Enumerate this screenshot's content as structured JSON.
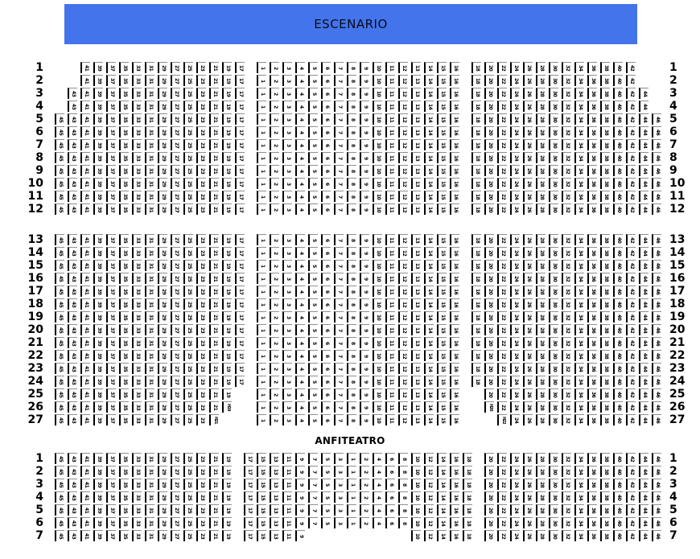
{
  "stage": {
    "label": "ESCENARIO",
    "bg_color": "#4374EB",
    "text_color": "#0a0a14"
  },
  "anfiteatro": {
    "label": "ANFITEATRO"
  },
  "seat_style": {
    "border_color": "#000000",
    "top_border_color": "#8f8f8f",
    "background": "#ffffff"
  },
  "main_block_1": {
    "rows": [
      {
        "n": "1",
        "left": "- - 41 39 37 35 33 31 29 27 25 23 21 19 17",
        "center": "1 2 3 4 5 6 7 8 9 10 11 12 13 14 15 16",
        "right": "18 20 22 24 26 28 30 32 34 36 38 40 42 - -"
      },
      {
        "n": "2",
        "left": "- - 41 39 37 35 33 31 29 27 25 23 21 19 17",
        "center": "1 2 3 4 5 6 7 8 9 10 11 12 13 14 15 16",
        "right": "18 20 22 24 26 28 30 32 34 36 38 40 42 - -"
      },
      {
        "n": "3",
        "left": "- 43 41 39 37 35 33 31 29 27 25 23 21 19 17",
        "center": "1 2 3 4 5 6 7 8 9 10 11 12 13 14 15 16",
        "right": "18 20 22 24 26 28 30 32 34 36 38 40 42 44 -"
      },
      {
        "n": "4",
        "left": "- 43 41 39 37 35 33 31 29 27 25 23 21 19 17",
        "center": "1 2 3 4 5 6 7 8 9 10 11 12 13 14 15 16",
        "right": "18 20 22 24 26 28 30 32 34 36 38 40 42 44 -"
      },
      {
        "n": "5",
        "left": "45 43 41 39 37 35 33 31 29 27 25 23 21 19 17",
        "center": "1 2 3 4 5 6 7 8 9 10 11 12 13 14 15 16",
        "right": "18 20 22 24 26 28 30 32 34 36 38 40 42 44 46"
      },
      {
        "n": "6",
        "left": "45 43 41 39 37 35 33 31 29 27 25 23 21 19 17",
        "center": "1 2 3 4 5 6 7 8 9 10 11 12 13 14 15 16",
        "right": "18 20 22 24 26 28 30 32 34 36 38 40 42 44 46"
      },
      {
        "n": "7",
        "left": "45 43 41 39 37 35 33 31 29 27 25 23 21 19 17",
        "center": "1 2 3 4 5 6 7 8 9 10 11 12 13 14 15 16",
        "right": "18 20 22 24 26 28 30 32 34 36 38 40 42 44 46"
      },
      {
        "n": "8",
        "left": "45 43 41 39 37 35 33 31 29 27 25 23 21 19 17",
        "center": "1 2 3 4 5 6 7 8 9 10 11 12 13 14 15 16",
        "right": "18 20 22 24 26 28 30 32 34 36 38 40 42 44 46"
      },
      {
        "n": "9",
        "left": "45 43 41 39 37 35 33 31 29 27 25 23 21 19 17",
        "center": "1 2 3 4 5 6 7 8 9 10 11 12 13 14 15 16",
        "right": "18 20 22 24 26 28 30 32 34 36 38 40 42 44 46"
      },
      {
        "n": "10",
        "left": "45 43 41 39 37 35 33 31 29 27 25 23 21 19 17",
        "center": "1 2 3 4 5 6 7 8 9 10 11 12 13 14 15 16",
        "right": "18 20 22 24 26 28 30 32 34 36 38 40 42 44 46"
      },
      {
        "n": "11",
        "left": "45 43 41 39 37 35 33 31 29 27 25 23 21 19 17",
        "center": "1 2 3 4 5 6 7 8 9 10 11 12 13 14 15 16",
        "right": "18 20 22 24 26 28 30 32 34 36 38 40 42 44 46"
      },
      {
        "n": "12",
        "left": "45 43 41 39 37 35 33 31 29 27 25 23 21 19 17",
        "center": "1 2 3 4 5 6 7 8 9 10 11 12 13 14 15 16",
        "right": "18 20 22 24 26 28 30 32 34 36 38 40 42 44 46"
      }
    ]
  },
  "main_block_2": {
    "rows": [
      {
        "n": "13",
        "left": "45 43 41 39 37 35 33 31 29 27 25 23 21 19 17",
        "center": "1 2 3 4 5 6 7 8 9 10 11 12 13 14 15 16",
        "right": "18 20 22 24 26 28 30 32 34 36 38 40 42 44 46"
      },
      {
        "n": "14",
        "left": "45 43 41 39 37 35 33 31 29 27 25 23 21 19 17",
        "center": "1 2 3 4 5 6 7 8 9 10 11 12 13 14 15 16",
        "right": "18 20 22 24 26 28 30 32 34 36 38 40 42 44 46"
      },
      {
        "n": "15",
        "left": "45 43 41 39 37 35 33 31 29 27 25 23 21 19 17",
        "center": "1 2 3 4 5 6 7 8 9 10 11 12 13 14 15 16",
        "right": "18 20 22 24 26 28 30 32 34 36 38 40 42 44 46"
      },
      {
        "n": "16",
        "left": "45 43 41 39 37 35 33 31 29 27 25 23 21 19 17",
        "center": "1 2 3 4 5 6 7 8 9 10 11 12 13 14 15 16",
        "right": "18 20 22 24 26 28 30 32 34 36 38 40 42 44 46"
      },
      {
        "n": "17",
        "left": "45 43 41 39 37 35 33 31 29 27 25 23 21 19 17",
        "center": "1 2 3 4 5 6 7 8 9 10 11 12 13 14 15 16",
        "right": "18 20 22 24 26 28 30 32 34 36 38 40 42 44 46"
      },
      {
        "n": "18",
        "left": "45 43 41 39 37 35 33 31 29 27 25 23 21 19 17",
        "center": "1 2 3 4 5 6 7 8 9 10 11 12 13 14 15 16",
        "right": "18 20 22 24 26 28 30 32 34 36 38 40 42 44 46"
      },
      {
        "n": "19",
        "left": "45 43 41 39 37 35 33 31 29 27 25 23 21 19 17",
        "center": "1 2 3 4 5 6 7 8 9 10 11 12 13 14 15 16",
        "right": "18 20 22 24 26 28 30 32 34 36 38 40 42 44 46"
      },
      {
        "n": "20",
        "left": "45 43 41 39 37 35 33 31 29 27 25 23 21 19 17",
        "center": "1 2 3 4 5 6 7 8 9 10 11 12 13 14 15 16",
        "right": "18 20 22 24 26 28 30 32 34 36 38 40 42 44 46"
      },
      {
        "n": "21",
        "left": "45 43 41 39 37 35 33 31 29 27 25 23 21 19 17",
        "center": "1 2 3 4 5 6 7 8 9 10 11 12 13 14 15 16",
        "right": "18 20 22 24 26 28 30 32 34 36 38 40 42 44 46"
      },
      {
        "n": "22",
        "left": "45 43 41 39 37 35 33 31 29 27 25 23 21 19 17",
        "center": "1 2 3 4 5 6 7 8 9 10 11 12 13 14 15 16",
        "right": "18 20 22 24 26 28 30 32 34 36 38 40 42 44 46"
      },
      {
        "n": "23",
        "left": "45 43 41 39 37 35 33 31 29 27 25 23 21 19 17",
        "center": "1 2 3 4 5 6 7 8 9 10 11 12 13 14 15 16",
        "right": "18 20 22 24 26 28 30 32 34 36 38 40 42 44 46"
      },
      {
        "n": "24",
        "left": "45 43 41 39 37 35 33 31 29 27 25 23 21 19 17",
        "center": "1 2 3 4 5 6 7 8 9 10 11 12 13 14 15 16",
        "right": "18 20 22 24 26 28 30 32 34 36 38 40 42 44 46"
      },
      {
        "n": "25",
        "left": "45 43 41 39 37 35 33 31 29 27 25 23 21 19 -",
        "center": "1 2 3 4 5 6 7 8 9 10 11 12 13 14 15 16",
        "right": "- 20 22 24 26 28 30 32 34 36 38 40 42 44 46"
      },
      {
        "n": "26",
        "left": "45 43 41 39 37 35 33 31 29 27 25 23 21 H19 -",
        "center": "1 2 3 4 5 6 7 8 9 10 11 12 13 14 15 16",
        "right": "- H20 22 24 26 28 30 32 34 36 38 40 42 44 46"
      },
      {
        "n": "27",
        "left": "45 43 41 39 37 35 33 31 29 27 25 23 H21 - -",
        "center": "1 2 3 4 5 6 7 8 9 10 11 12 13 14 15 16",
        "right": "- - H22 24 26 28 30 32 34 36 38 40 42 44 46"
      }
    ]
  },
  "anfiteatro_block": {
    "rows": [
      {
        "n": "1",
        "left": "45 43 41 39 37 35 33 31 29 27 25 23 21 19 -",
        "center": "17 15 13 11 9 7 5 3 1 2 4 6 8 10 12 14 16 18",
        "right": "- 20 22 24 26 28 30 32 34 36 38 40 42 44 46"
      },
      {
        "n": "2",
        "left": "45 43 41 39 37 35 33 31 29 27 25 23 21 19 -",
        "center": "17 15 13 11 9 7 5 3 1 2 4 6 8 10 12 14 16 18",
        "right": "- 20 22 24 26 28 30 32 34 36 38 40 42 44 46"
      },
      {
        "n": "3",
        "left": "45 43 41 39 37 35 33 31 29 27 25 23 21 19 -",
        "center": "17 15 13 11 9 7 5 3 1 2 4 6 8 10 12 14 16 18",
        "right": "- 20 22 24 26 28 30 32 34 36 38 40 42 44 46"
      },
      {
        "n": "4",
        "left": "45 43 41 39 37 35 33 31 29 27 25 23 21 19 -",
        "center": "17 15 13 11 9 7 5 3 1 2 4 6 8 10 12 14 16 18",
        "right": "- 20 22 24 26 28 30 32 34 36 38 40 42 44 46"
      },
      {
        "n": "5",
        "left": "45 43 41 39 37 35 33 31 29 27 25 23 21 19 -",
        "center": "17 15 13 11 9 7 5 3 1 2 4 6 8 10 12 14 16 18",
        "right": "- 20 22 24 26 28 30 32 34 36 38 40 42 44 46"
      },
      {
        "n": "6",
        "left": "45 43 41 39 37 35 33 31 29 27 25 23 21 19 -",
        "center": "17 15 13 11 9 7 5 3 1 2 4 6 8 10 12 14 16 18",
        "right": "- 20 22 24 26 28 30 32 34 36 38 40 42 44 46"
      },
      {
        "n": "7",
        "left": "45 43 41 39 37 35 33 31 29 27 25 23 21 19 -",
        "center": "17 15 13 11 9 - - - - - - - - 10 12 14 16 18",
        "right": "- 20 22 24 26 28 30 32 34 36 38 40 42 44 46"
      }
    ]
  }
}
